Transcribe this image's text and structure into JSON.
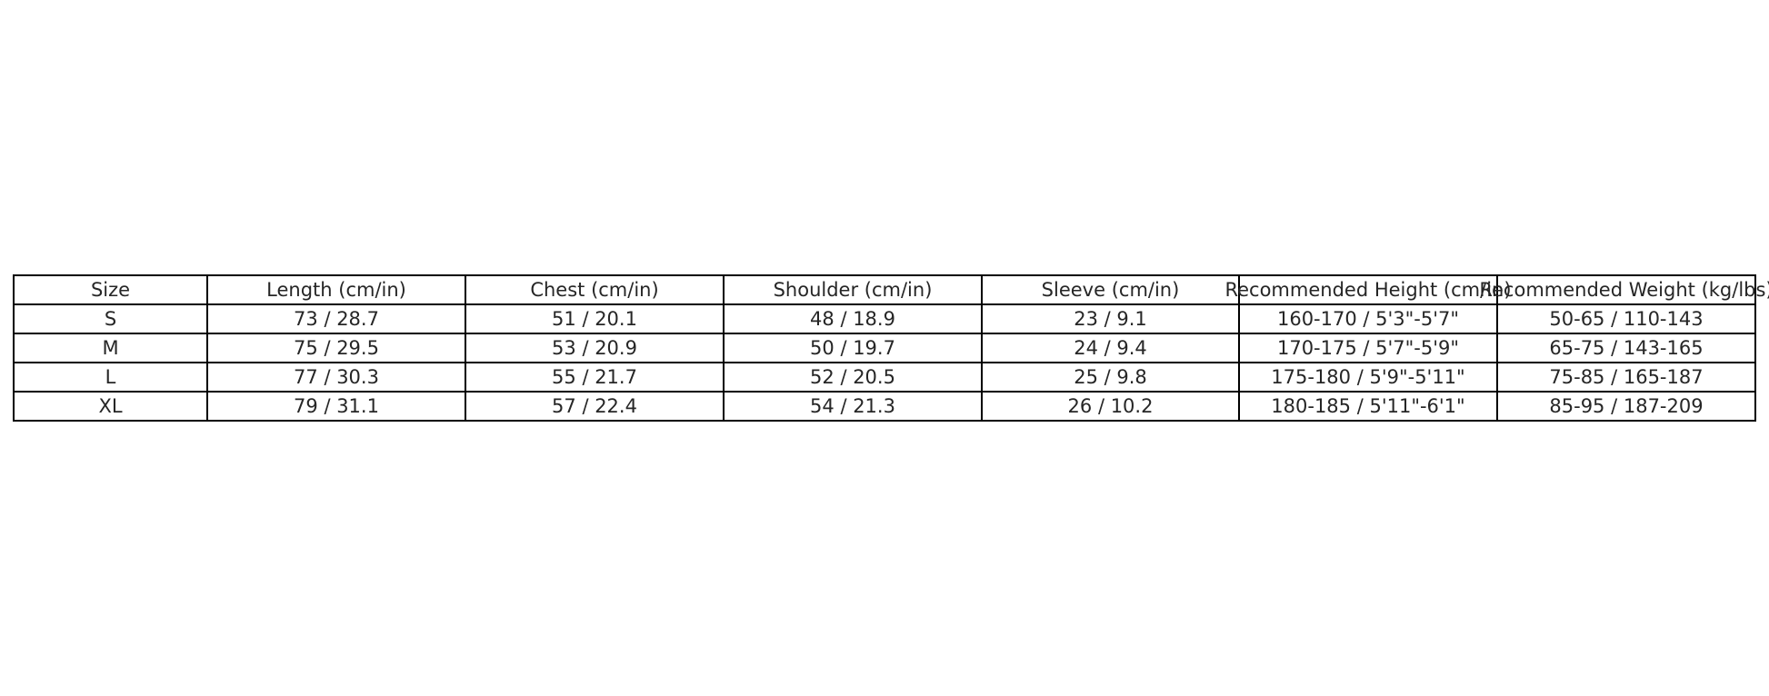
{
  "chart_data": {
    "type": "table",
    "columns": [
      "Size",
      "Length (cm/in)",
      "Chest (cm/in)",
      "Shoulder (cm/in)",
      "Sleeve (cm/in)",
      "Recommended Height (cm/in)",
      "Recommended Weight (kg/lbs)"
    ],
    "rows": [
      [
        "S",
        "73 / 28.7",
        "51 / 20.1",
        "48 / 18.9",
        "23 / 9.1",
        "160-170 / 5'3\"-5'7\"",
        "50-65 / 110-143"
      ],
      [
        "M",
        "75 / 29.5",
        "53 / 20.9",
        "50 / 19.7",
        "24 / 9.4",
        "170-175 / 5'7\"-5'9\"",
        "65-75 / 143-165"
      ],
      [
        "L",
        "77 / 30.3",
        "55 / 21.7",
        "52 / 20.5",
        "25 / 9.8",
        "175-180 / 5'9\"-5'11\"",
        "75-85 / 165-187"
      ],
      [
        "XL",
        "79 / 31.1",
        "57 / 22.4",
        "54 / 21.3",
        "26 / 10.2",
        "180-185 / 5'11\"-6'1\"",
        "85-95 / 187-209"
      ]
    ],
    "border_color": "#000000",
    "text_color": "#262626"
  }
}
